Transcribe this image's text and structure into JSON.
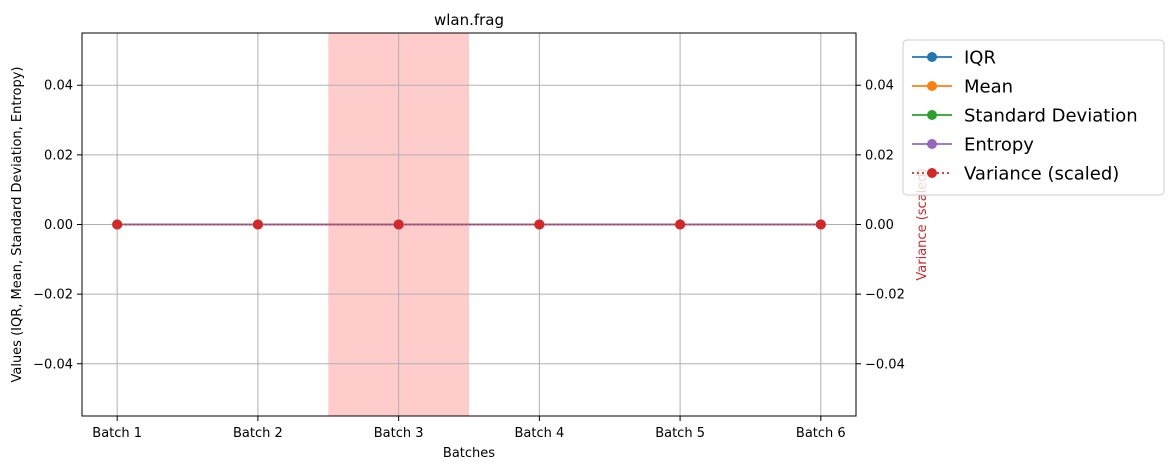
{
  "chart_data": {
    "type": "line",
    "title": "wlan.frag",
    "xlabel": "Batches",
    "ylabel_left": "Values (IQR, Mean, Standard Deviation, Entropy)",
    "ylabel_right": "Variance (scaled)",
    "categories": [
      "Batch 1",
      "Batch 2",
      "Batch 3",
      "Batch 4",
      "Batch 5",
      "Batch 6"
    ],
    "ylim": [
      -0.055,
      0.055
    ],
    "y_ticks": [
      -0.04,
      -0.02,
      0.0,
      0.02,
      0.04
    ],
    "y_tick_labels": [
      "−0.04",
      "−0.02",
      "0.00",
      "0.02",
      "0.04"
    ],
    "grid": true,
    "legend_position": "outside-right-top",
    "highlight_span": {
      "from_category": "Batch 3",
      "offset": 0.5,
      "color": "#ffcccc"
    },
    "series": [
      {
        "name": "IQR",
        "values": [
          0,
          0,
          0,
          0,
          0,
          0
        ],
        "color": "#1f77b4",
        "axis": "left",
        "style": "solid"
      },
      {
        "name": "Mean",
        "values": [
          0,
          0,
          0,
          0,
          0,
          0
        ],
        "color": "#ff7f0e",
        "axis": "left",
        "style": "solid"
      },
      {
        "name": "Standard Deviation",
        "values": [
          0,
          0,
          0,
          0,
          0,
          0
        ],
        "color": "#2ca02c",
        "axis": "left",
        "style": "solid"
      },
      {
        "name": "Entropy",
        "values": [
          0,
          0,
          0,
          0,
          0,
          0
        ],
        "color": "#9467bd",
        "axis": "left",
        "style": "solid"
      },
      {
        "name": "Variance (scaled)",
        "values": [
          0,
          0,
          0,
          0,
          0,
          0
        ],
        "color": "#d62728",
        "axis": "right",
        "style": "dotted"
      }
    ]
  }
}
